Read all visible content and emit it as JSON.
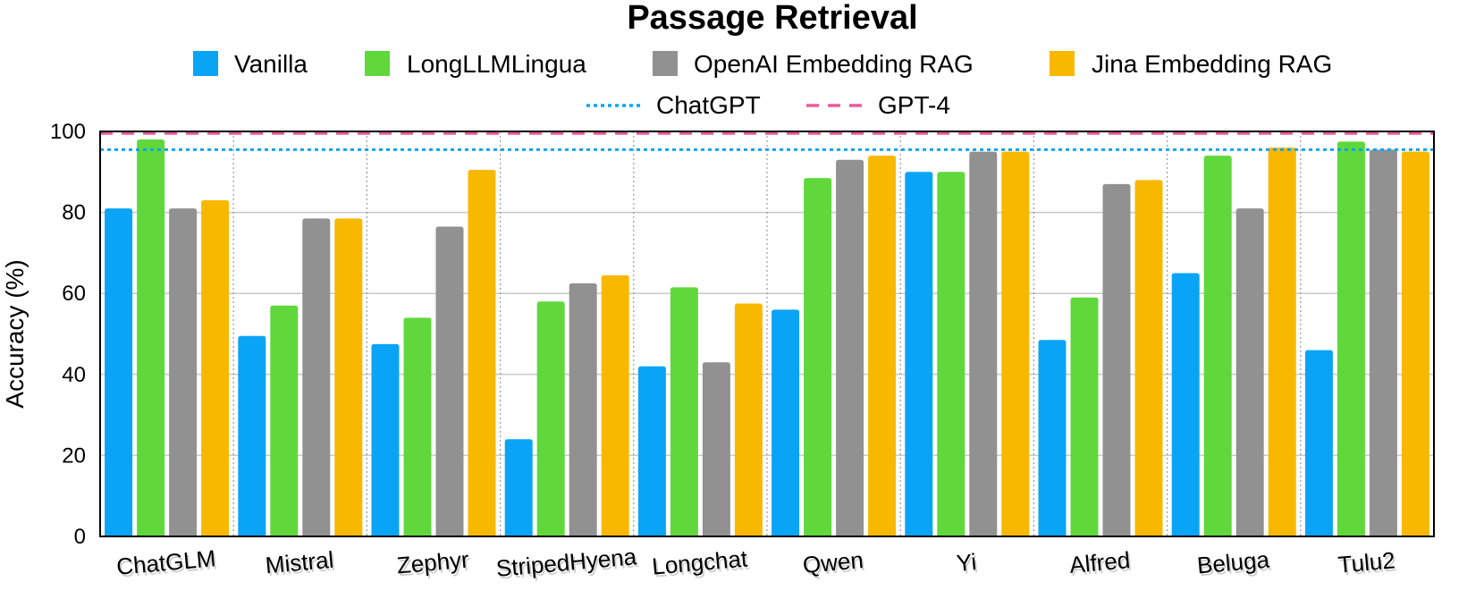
{
  "chart_data": {
    "type": "bar",
    "title": "Passage Retrieval",
    "xlabel": "",
    "ylabel": "Accuracy (%)",
    "ylim": [
      0,
      100
    ],
    "yticks": [
      0,
      20,
      40,
      60,
      80,
      100
    ],
    "grid": true,
    "legend_position": "top",
    "categories": [
      "ChatGLM",
      "Mistral",
      "Zephyr",
      "StripedHyena",
      "Longchat",
      "Qwen",
      "Yi",
      "Alfred",
      "Beluga",
      "Tulu2"
    ],
    "series": [
      {
        "name": "Vanilla",
        "color": "#0aa4f6",
        "values": [
          81,
          49.5,
          47.5,
          24,
          42,
          56,
          90,
          48.5,
          65,
          46
        ]
      },
      {
        "name": "LongLLMLingua",
        "color": "#60d83c",
        "values": [
          98,
          57,
          54,
          58,
          61.5,
          88.5,
          90,
          59,
          94,
          97.5
        ]
      },
      {
        "name": "OpenAI Embedding RAG",
        "color": "#919191",
        "values": [
          81,
          78.5,
          76.5,
          62.5,
          43,
          93,
          95,
          87,
          81,
          95.5
        ]
      },
      {
        "name": "Jina Embedding  RAG",
        "color": "#f8b800",
        "values": [
          83,
          78.5,
          90.5,
          64.5,
          57.5,
          94,
          95,
          88,
          96,
          95
        ]
      }
    ],
    "reference_lines": [
      {
        "name": "ChatGPT",
        "value": 95.5,
        "color": "#0aa4f6",
        "style": "dotted"
      },
      {
        "name": "GPT-4",
        "value": 99.5,
        "color": "#ec5a9c",
        "style": "dashed"
      }
    ]
  }
}
